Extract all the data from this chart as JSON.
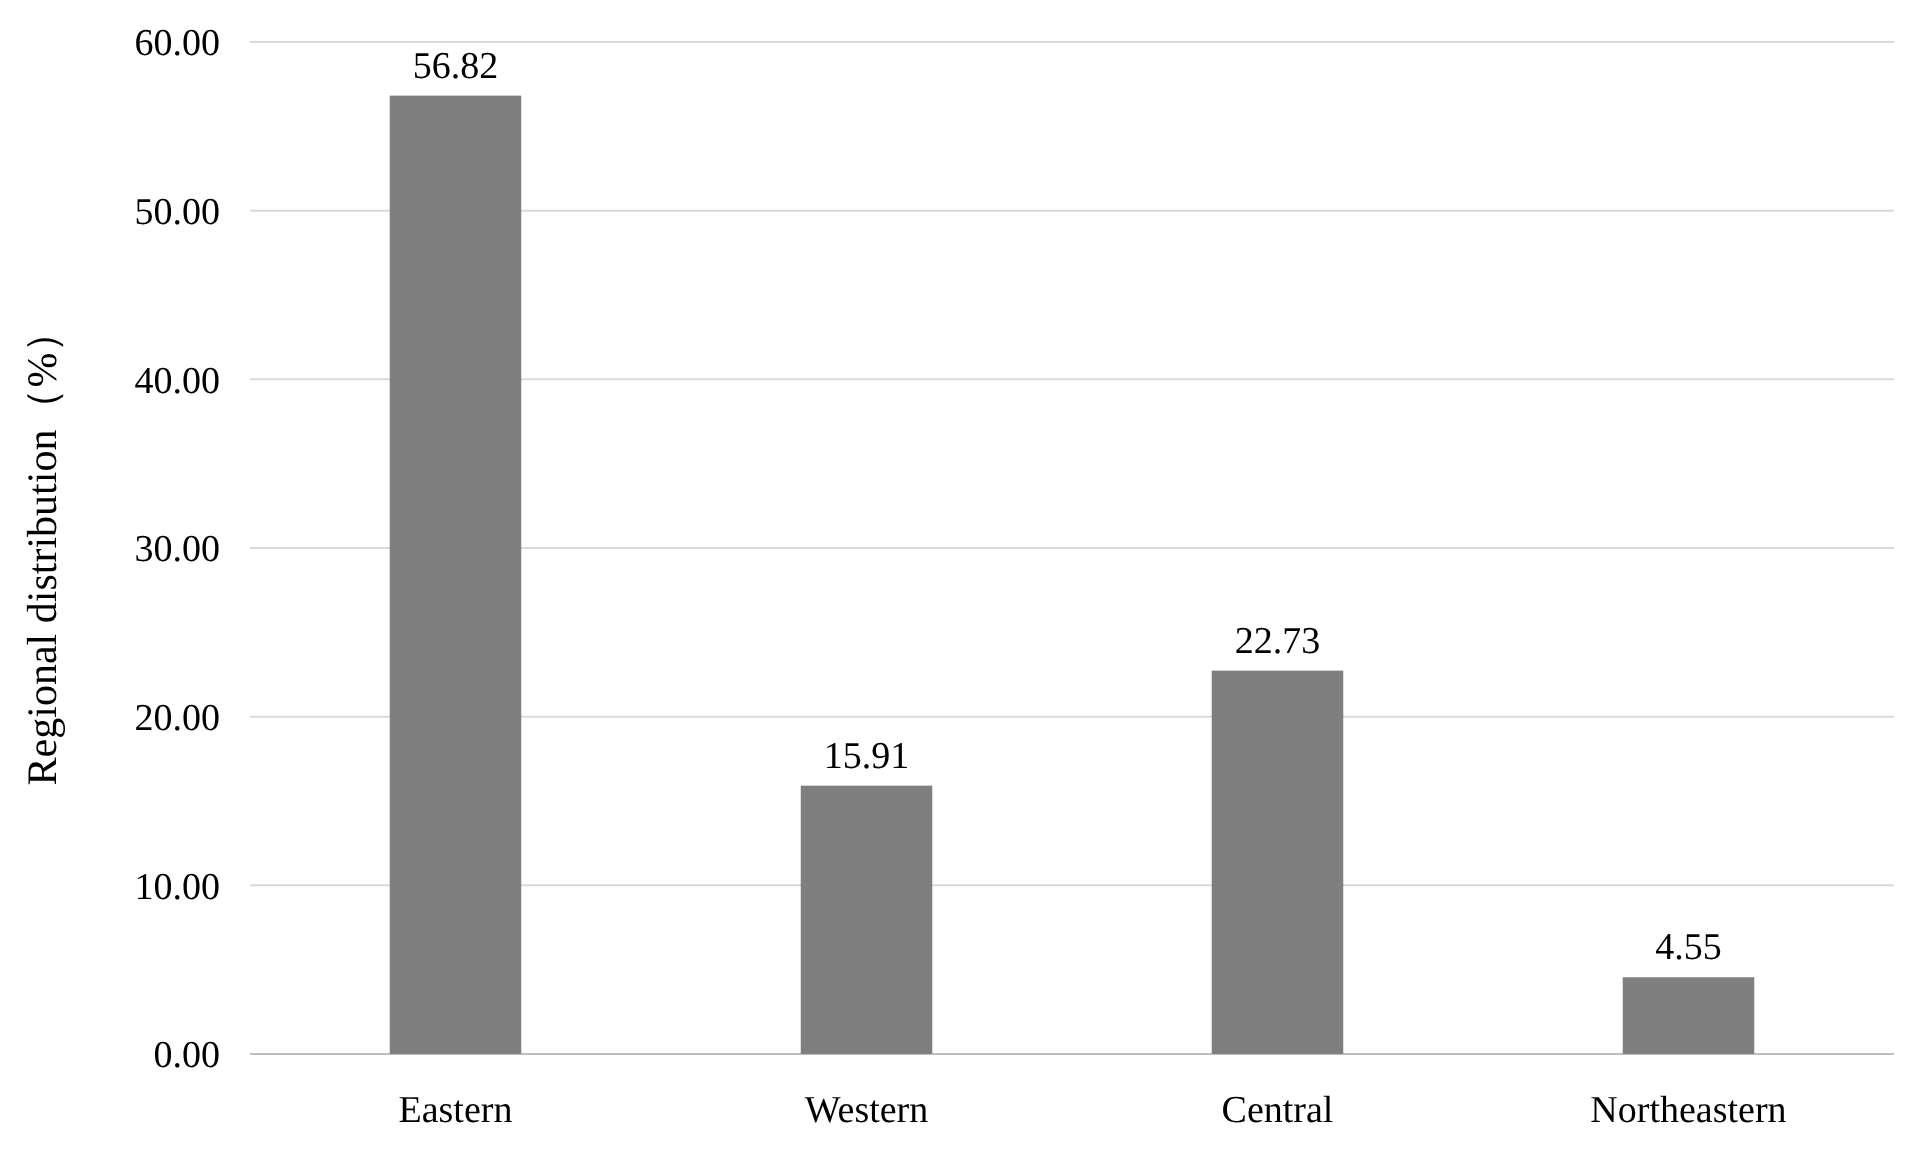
{
  "chart_data": {
    "type": "bar",
    "ylabel": "Regional distribution（%）",
    "categories": [
      "Eastern",
      "Western",
      "Central",
      "Northeastern"
    ],
    "values": [
      56.82,
      15.91,
      22.73,
      4.55
    ],
    "color": "#7f7f7f",
    "ylim": [
      0,
      60
    ],
    "yticks": [
      {
        "value": 0,
        "label": "0.00"
      },
      {
        "value": 10,
        "label": "10.00"
      },
      {
        "value": 20,
        "label": "20.00"
      },
      {
        "value": 30,
        "label": "30.00"
      },
      {
        "value": 40,
        "label": "40.00"
      },
      {
        "value": 50,
        "label": "50.00"
      },
      {
        "value": 60,
        "label": "60.00"
      }
    ],
    "grid": "y",
    "data_labels": true
  }
}
